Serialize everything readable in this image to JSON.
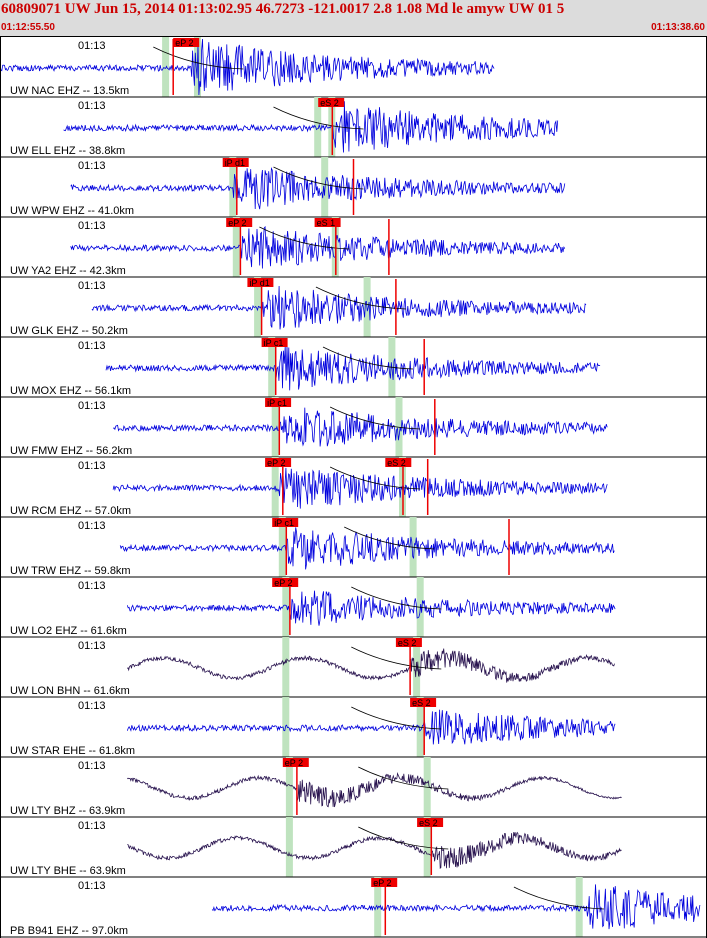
{
  "header": {
    "title": "60809071 UW Jun 15, 2014 01:13:02.95   46.7273 -121.0017  2.8 1.08 Md le amyw UW 01   5",
    "start_time": "01:12:55.50",
    "end_time": "01:13:38.60"
  },
  "colors": {
    "header_bg": "#dcdcdc",
    "title_red": "#cc0000",
    "trace_blue": "#0000dd",
    "trace_purple": "#2a1550",
    "pick_red": "#ee0000",
    "window_green": "#bfe3bf"
  },
  "panels": [
    {
      "label": "UW NAC EHZ -- 13.5km",
      "time": "01:13",
      "color": "blue",
      "start": 0,
      "end": 0.7,
      "onset": 0.27,
      "amp": 0.55,
      "picks": [
        {
          "label": "eP 2",
          "pos": 0.245
        }
      ],
      "green": [
        0.235,
        0.28
      ],
      "redlines": [
        0.245
      ],
      "arrival": 0.33
    },
    {
      "label": "UW ELL EHZ -- 38.8km",
      "time": "01:13",
      "color": "blue",
      "start": 0.09,
      "end": 0.79,
      "onset": 0.47,
      "amp": 0.5,
      "picks": [
        {
          "label": "eS 2",
          "pos": 0.45
        }
      ],
      "green": [
        0.45,
        0.47
      ],
      "redlines": [
        0.47
      ],
      "arrival": 0.5
    },
    {
      "label": "UW WPW EHZ -- 41.0km",
      "time": "01:13",
      "color": "blue",
      "start": 0.1,
      "end": 0.8,
      "onset": 0.33,
      "amp": 0.42,
      "picks": [
        {
          "label": "iP d1",
          "pos": 0.315
        }
      ],
      "green": [
        0.33,
        0.46
      ],
      "redlines": [
        0.335,
        0.5
      ],
      "arrival": 0.5
    },
    {
      "label": "UW YA2 EHZ -- 42.3km",
      "time": "01:13",
      "color": "blue",
      "start": 0.1,
      "end": 0.8,
      "onset": 0.34,
      "amp": 0.42,
      "picks": [
        {
          "label": "eP 2",
          "pos": 0.32
        },
        {
          "label": "eS 1",
          "pos": 0.445
        }
      ],
      "green": [
        0.335,
        0.475
      ],
      "redlines": [
        0.34,
        0.475,
        0.55
      ],
      "arrival": 0.48
    },
    {
      "label": "UW GLK EHZ -- 50.2km",
      "time": "01:13",
      "color": "blue",
      "start": 0.13,
      "end": 0.83,
      "onset": 0.37,
      "amp": 0.42,
      "picks": [
        {
          "label": "iP d1",
          "pos": 0.35
        }
      ],
      "green": [
        0.365,
        0.52
      ],
      "redlines": [
        0.37,
        0.56
      ],
      "arrival": 0.56
    },
    {
      "label": "UW MOX EHZ -- 56.1km",
      "time": "01:13",
      "color": "blue",
      "start": 0.15,
      "end": 0.85,
      "onset": 0.39,
      "amp": 0.42,
      "picks": [
        {
          "label": "iP c1",
          "pos": 0.37
        }
      ],
      "green": [
        0.385,
        0.555
      ],
      "redlines": [
        0.39,
        0.6
      ],
      "arrival": 0.57
    },
    {
      "label": "UW FMW EHZ -- 56.2km",
      "time": "01:13",
      "color": "blue",
      "start": 0.16,
      "end": 0.86,
      "onset": 0.395,
      "amp": 0.42,
      "picks": [
        {
          "label": "iP c1",
          "pos": 0.375
        }
      ],
      "green": [
        0.39,
        0.565
      ],
      "redlines": [
        0.395,
        0.615
      ],
      "arrival": 0.58
    },
    {
      "label": "UW RCM EHZ -- 57.0km",
      "time": "01:13",
      "color": "blue",
      "start": 0.16,
      "end": 0.86,
      "onset": 0.395,
      "amp": 0.42,
      "picks": [
        {
          "label": "eP 2",
          "pos": 0.375
        },
        {
          "label": "eS 2",
          "pos": 0.545
        }
      ],
      "green": [
        0.39,
        0.57
      ],
      "redlines": [
        0.4,
        0.57,
        0.605
      ],
      "arrival": 0.58
    },
    {
      "label": "UW TRW EHZ -- 59.8km",
      "time": "01:13",
      "color": "blue",
      "start": 0.17,
      "end": 0.87,
      "onset": 0.405,
      "amp": 0.42,
      "picks": [
        {
          "label": "iP c1",
          "pos": 0.385
        }
      ],
      "green": [
        0.4,
        0.585
      ],
      "redlines": [
        0.405,
        0.72
      ],
      "arrival": 0.6
    },
    {
      "label": "UW LO2 EHZ -- 61.6km",
      "time": "01:13",
      "color": "blue",
      "start": 0.18,
      "end": 0.87,
      "onset": 0.41,
      "amp": 0.35,
      "picks": [
        {
          "label": "eP 2",
          "pos": 0.385
        }
      ],
      "green": [
        0.405,
        0.595
      ],
      "redlines": [
        0.41
      ],
      "arrival": 0.61
    },
    {
      "label": "UW LON BHN -- 61.6km",
      "time": "01:13",
      "color": "purple",
      "start": 0.18,
      "end": 0.87,
      "onset": 0.58,
      "amp": 0.3,
      "picks": [
        {
          "label": "eS 2",
          "pos": 0.56
        }
      ],
      "green": [
        0.405,
        0.59
      ],
      "redlines": [
        0.58
      ],
      "arrival": 0.61
    },
    {
      "label": "UW STAR EHE -- 61.8km",
      "time": "01:13",
      "color": "blue",
      "start": 0.18,
      "end": 0.87,
      "onset": 0.6,
      "amp": 0.35,
      "picks": [
        {
          "label": "eS 2",
          "pos": 0.58
        }
      ],
      "green": [
        0.405,
        0.595
      ],
      "redlines": [
        0.6
      ],
      "arrival": 0.61
    },
    {
      "label": "UW LTY BHZ -- 63.9km",
      "time": "01:13",
      "color": "purple",
      "start": 0.18,
      "end": 0.88,
      "onset": 0.42,
      "amp": 0.3,
      "picks": [
        {
          "label": "eP 2",
          "pos": 0.4
        }
      ],
      "green": [
        0.41,
        0.605
      ],
      "redlines": [
        0.42
      ],
      "arrival": 0.62
    },
    {
      "label": "UW LTY BHE -- 63.9km",
      "time": "01:13",
      "color": "purple",
      "start": 0.18,
      "end": 0.88,
      "onset": 0.61,
      "amp": 0.32,
      "picks": [
        {
          "label": "eS 2",
          "pos": 0.59
        }
      ],
      "green": [
        0.41,
        0.605
      ],
      "redlines": [
        0.61
      ],
      "arrival": 0.62
    },
    {
      "label": "PB B941 EHZ -- 97.0km",
      "time": "01:13",
      "color": "blue",
      "start": 0.3,
      "end": 0.99,
      "onset": 0.83,
      "amp": 0.45,
      "picks": [
        {
          "label": "eP 2",
          "pos": 0.525
        }
      ],
      "green": [
        0.535,
        0.82
      ],
      "redlines": [
        0.545
      ],
      "arrival": 0.84
    }
  ]
}
